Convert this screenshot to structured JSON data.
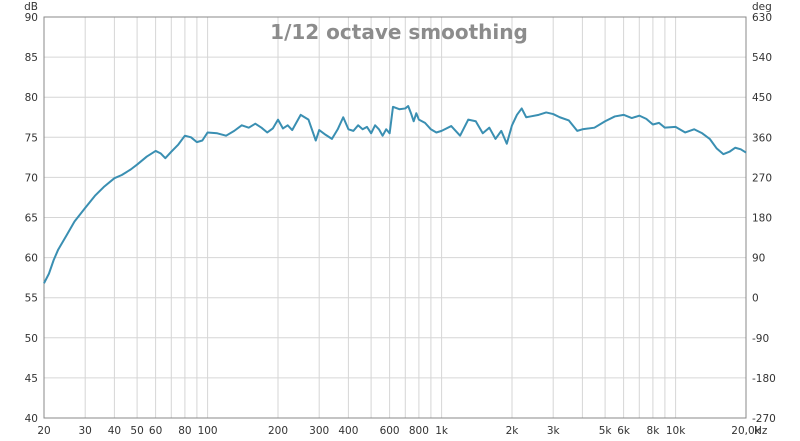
{
  "chart_data": {
    "type": "line",
    "title": "1/12 octave smoothing",
    "left_unit": "dB",
    "right_unit": "deg",
    "x_unit": "Hz",
    "xscale": "log",
    "xlim": [
      20,
      20000
    ],
    "ylim": [
      40,
      90
    ],
    "y2lim": [
      -270,
      630
    ],
    "grid": true,
    "colors": {
      "line": "#3a8fb2",
      "grid": "#d6d6d6",
      "axis": "#888888",
      "title": "#8c8c8c"
    },
    "x_ticks": [
      {
        "value": 20,
        "label": "20"
      },
      {
        "value": 30,
        "label": "30"
      },
      {
        "value": 40,
        "label": "40"
      },
      {
        "value": 50,
        "label": "50"
      },
      {
        "value": 60,
        "label": "60"
      },
      {
        "value": 80,
        "label": "80"
      },
      {
        "value": 100,
        "label": "100"
      },
      {
        "value": 200,
        "label": "200"
      },
      {
        "value": 300,
        "label": "300"
      },
      {
        "value": 400,
        "label": "400"
      },
      {
        "value": 600,
        "label": "600"
      },
      {
        "value": 800,
        "label": "800"
      },
      {
        "value": 1000,
        "label": "1k"
      },
      {
        "value": 2000,
        "label": "2k"
      },
      {
        "value": 3000,
        "label": "3k"
      },
      {
        "value": 5000,
        "label": "5k"
      },
      {
        "value": 6000,
        "label": "6k"
      },
      {
        "value": 8000,
        "label": "8k"
      },
      {
        "value": 10000,
        "label": "10k"
      },
      {
        "value": 20000,
        "label": "20,0k"
      }
    ],
    "y_ticks": [
      90,
      85,
      80,
      75,
      70,
      65,
      60,
      55,
      50,
      45,
      40
    ],
    "y2_ticks": [
      630,
      540,
      450,
      360,
      270,
      180,
      90,
      0,
      -90,
      -180,
      -270
    ],
    "x": [
      20,
      21,
      22,
      23,
      25,
      27,
      30,
      33,
      36,
      40,
      43,
      47,
      50,
      55,
      60,
      63,
      66,
      70,
      75,
      80,
      85,
      90,
      95,
      100,
      110,
      120,
      130,
      140,
      150,
      160,
      170,
      180,
      190,
      200,
      210,
      220,
      230,
      250,
      270,
      290,
      300,
      320,
      340,
      360,
      380,
      400,
      420,
      440,
      460,
      480,
      500,
      520,
      540,
      560,
      580,
      600,
      620,
      660,
      700,
      720,
      740,
      760,
      780,
      800,
      850,
      900,
      950,
      1000,
      1100,
      1200,
      1300,
      1400,
      1500,
      1600,
      1700,
      1800,
      1900,
      2000,
      2100,
      2200,
      2300,
      2400,
      2600,
      2800,
      3000,
      3200,
      3500,
      3800,
      4000,
      4500,
      5000,
      5500,
      6000,
      6500,
      7000,
      7500,
      8000,
      8500,
      9000,
      10000,
      11000,
      12000,
      13000,
      14000,
      15000,
      16000,
      17000,
      18000,
      19000,
      20000
    ],
    "y": [
      56.8,
      58.0,
      59.7,
      61.0,
      62.8,
      64.5,
      66.2,
      67.7,
      68.8,
      69.9,
      70.3,
      71.0,
      71.6,
      72.6,
      73.3,
      73.0,
      72.4,
      73.2,
      74.1,
      75.2,
      75.0,
      74.4,
      74.6,
      75.6,
      75.5,
      75.2,
      75.8,
      76.5,
      76.2,
      76.7,
      76.2,
      75.6,
      76.1,
      77.2,
      76.1,
      76.5,
      75.9,
      77.8,
      77.2,
      74.6,
      75.9,
      75.3,
      74.8,
      76.0,
      77.5,
      76.0,
      75.8,
      76.5,
      76.0,
      76.3,
      75.5,
      76.5,
      76.0,
      75.2,
      76.0,
      75.5,
      78.8,
      78.5,
      78.6,
      78.9,
      78.0,
      77.0,
      78.0,
      77.2,
      76.8,
      76.0,
      75.6,
      75.8,
      76.4,
      75.2,
      77.2,
      77.0,
      75.5,
      76.2,
      74.8,
      75.8,
      74.2,
      76.5,
      77.8,
      78.6,
      77.5,
      77.6,
      77.8,
      78.1,
      77.9,
      77.5,
      77.1,
      75.8,
      76.0,
      76.2,
      77.0,
      77.6,
      77.8,
      77.4,
      77.7,
      77.3,
      76.6,
      76.8,
      76.2,
      76.3,
      75.6,
      76.0,
      75.5,
      74.8,
      73.6,
      72.9,
      73.2,
      73.7,
      73.5,
      73.1
    ]
  }
}
